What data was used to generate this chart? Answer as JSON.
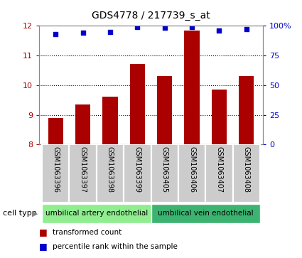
{
  "title": "GDS4778 / 217739_s_at",
  "samples": [
    "GSM1063396",
    "GSM1063397",
    "GSM1063398",
    "GSM1063399",
    "GSM1063405",
    "GSM1063406",
    "GSM1063407",
    "GSM1063408"
  ],
  "bar_values": [
    8.9,
    9.35,
    9.6,
    10.72,
    10.3,
    11.85,
    9.85,
    10.3
  ],
  "percentile_values": [
    93,
    94,
    94.5,
    99,
    98.5,
    99,
    96,
    97
  ],
  "ylim_left": [
    8,
    12
  ],
  "ylim_right": [
    0,
    100
  ],
  "yticks_left": [
    8,
    9,
    10,
    11,
    12
  ],
  "yticks_right": [
    0,
    25,
    50,
    75,
    100
  ],
  "ytick_labels_right": [
    "0",
    "25",
    "50",
    "75",
    "100%"
  ],
  "bar_color": "#aa0000",
  "dot_color": "#0000cc",
  "cell_type_groups": [
    {
      "label": "umbilical artery endothelial",
      "color": "#90ee90"
    },
    {
      "label": "umbilical vein endothelial",
      "color": "#3cb371"
    }
  ],
  "cell_type_label": "cell type",
  "legend_bar_label": "transformed count",
  "legend_dot_label": "percentile rank within the sample",
  "sample_box_color": "#cccccc",
  "bar_width": 0.55,
  "title_fontsize": 10,
  "tick_fontsize": 8,
  "label_fontsize": 7
}
